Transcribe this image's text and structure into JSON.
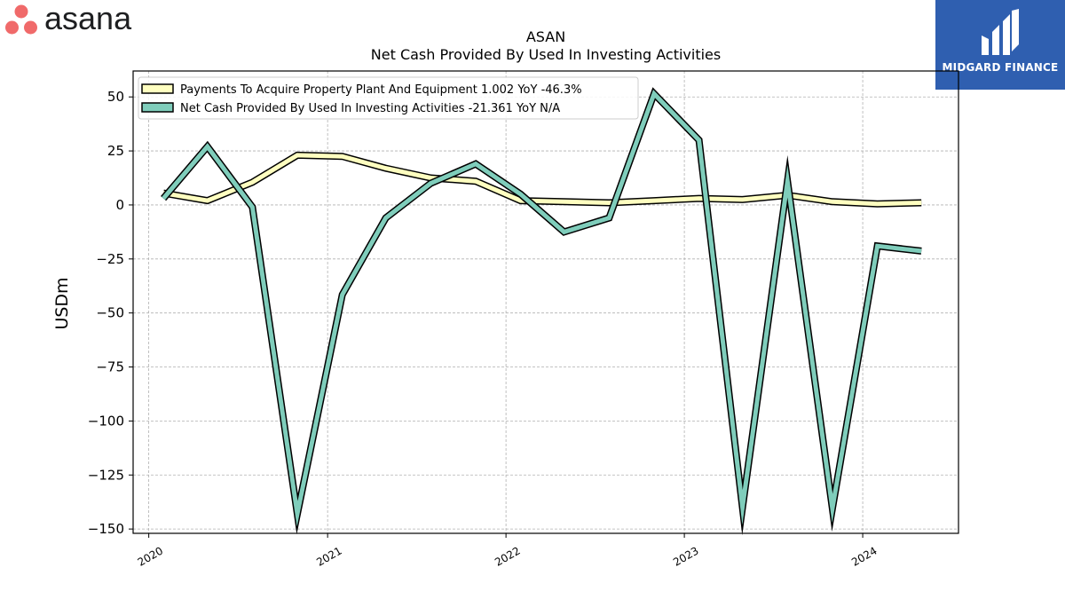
{
  "logos": {
    "left": {
      "wordmark": "asana",
      "dot_color": "#f06a6a"
    },
    "right": {
      "text": "MIDGARD FINANCE",
      "background": "#2f5fb0"
    }
  },
  "chart_data": {
    "type": "line",
    "title": "ASAN",
    "subtitle": "Net Cash Provided By Used In Investing Activities",
    "ylabel": "USDm",
    "xlabel": "",
    "ylim": [
      -152,
      62
    ],
    "xlim": [
      "2019-11-30",
      "2024-07-15"
    ],
    "yticks": [
      50,
      25,
      0,
      -25,
      -50,
      -75,
      -100,
      -125,
      -150
    ],
    "ytick_labels": [
      "50",
      "25",
      "0",
      "−25",
      "−50",
      "−75",
      "−100",
      "−125",
      "−150"
    ],
    "xticks": [
      "2020-01-01",
      "2021-01-01",
      "2022-01-01",
      "2023-01-01",
      "2024-01-01"
    ],
    "xtick_labels": [
      "2020",
      "2021",
      "2022",
      "2023",
      "2024"
    ],
    "grid": true,
    "legend_position": "top-left",
    "series": [
      {
        "name": "Payments To Acquire Property Plant And Equipment  1.002 YoY -46.3%",
        "color": "#ffffc0",
        "x": [
          "2020-01-31",
          "2020-04-30",
          "2020-07-31",
          "2020-10-31",
          "2021-01-31",
          "2021-04-30",
          "2021-07-31",
          "2021-10-31",
          "2022-01-31",
          "2022-04-30",
          "2022-07-31",
          "2022-10-31",
          "2023-01-31",
          "2023-04-30",
          "2023-07-31",
          "2023-10-31",
          "2024-01-31",
          "2024-04-30"
        ],
        "values": [
          5.5,
          2.0,
          10.5,
          23.0,
          22.5,
          17.0,
          12.5,
          11.0,
          2.0,
          1.5,
          1.0,
          2.0,
          3.0,
          2.5,
          4.5,
          1.5,
          0.5,
          1.0
        ]
      },
      {
        "name": "Net Cash Provided By Used In Investing Activities  -21.361 YoY N/A",
        "color": "#7fcdbb",
        "x": [
          "2020-01-31",
          "2020-04-30",
          "2020-07-31",
          "2020-10-31",
          "2021-01-31",
          "2021-04-30",
          "2021-07-31",
          "2021-10-31",
          "2022-01-31",
          "2022-04-30",
          "2022-07-31",
          "2022-10-31",
          "2023-01-31",
          "2023-04-30",
          "2023-07-31",
          "2023-10-31",
          "2024-01-31",
          "2024-04-30"
        ],
        "values": [
          3.0,
          27.0,
          -1.0,
          -143.0,
          -41.5,
          -6.0,
          10.0,
          19.0,
          5.0,
          -12.5,
          -6.0,
          51.5,
          30.0,
          -140.0,
          11.0,
          -140.5,
          -19.0,
          -21.361
        ]
      }
    ]
  }
}
